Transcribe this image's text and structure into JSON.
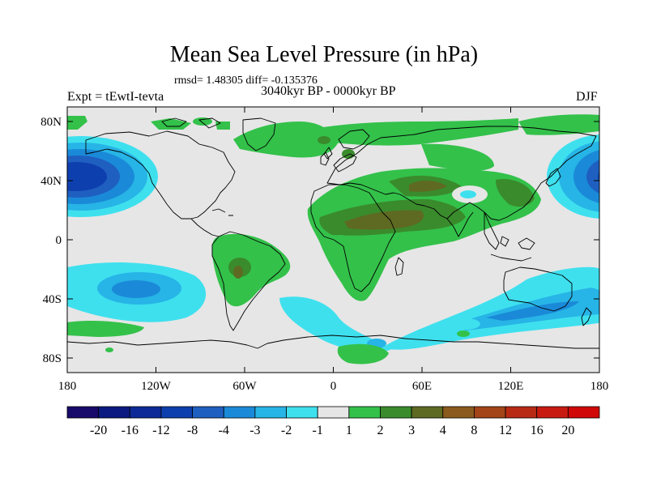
{
  "title": "Mean Sea Level Pressure (in hPa)",
  "stats": "rmsd= 1.48305 diff= -0.135376",
  "experiment": "Expt = tEwtI-tevta",
  "period": "3040kyr BP - 0000kyr BP",
  "season": "DJF",
  "map": {
    "lon_range": [
      -180,
      180
    ],
    "lat_range": [
      -90,
      90
    ],
    "lat_ticks": [
      "80N",
      "40N",
      "0",
      "40S",
      "80S"
    ],
    "lon_ticks": [
      "180",
      "120W",
      "60W",
      "0",
      "60E",
      "120E",
      "180"
    ]
  },
  "colorbar": {
    "labels": [
      "-20",
      "-16",
      "-12",
      "-8",
      "-4",
      "-3",
      "-2",
      "-1",
      "1",
      "2",
      "3",
      "4",
      "8",
      "12",
      "16",
      "20"
    ],
    "colors": [
      "#180a6a",
      "#0a1a80",
      "#0e2a98",
      "#0e3fae",
      "#1f5fc0",
      "#1a8ad8",
      "#27b4e6",
      "#3ee0ee",
      "#e6e6e6",
      "#33c14a",
      "#3a8b2c",
      "#5e6a22",
      "#8a5a1e",
      "#a24418",
      "#b82a14",
      "#c81a10",
      "#d00808"
    ]
  },
  "colors": {
    "background": "#e6e6e6",
    "neg1": "#3ee0ee",
    "neg2": "#27b4e6",
    "neg3": "#1a8ad8",
    "neg4": "#1f5fc0",
    "neg8": "#0e3fae",
    "pos1": "#33c14a",
    "pos2": "#3a8b2c",
    "pos3": "#5e6a22",
    "pos4": "#8a5a1e"
  }
}
